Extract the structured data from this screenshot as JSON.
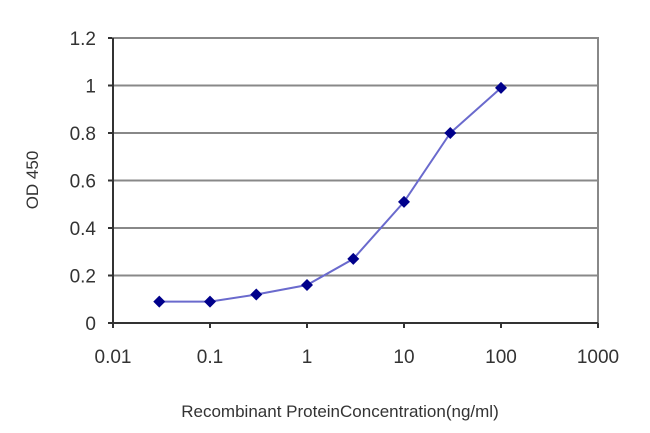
{
  "chart_data": {
    "type": "line",
    "title": "",
    "xlabel": "Recombinant ProteinConcentration(ng/ml)",
    "ylabel": "OD 450",
    "x_scale": "log",
    "xlim": [
      0.01,
      1000
    ],
    "ylim": [
      0,
      1.2
    ],
    "x_ticks": [
      "0.01",
      "0.1",
      "1",
      "10",
      "100",
      "1000"
    ],
    "y_ticks": [
      "0",
      "0.2",
      "0.4",
      "0.6",
      "0.8",
      "1",
      "1.2"
    ],
    "grid": {
      "horizontal": true,
      "vertical": false
    },
    "legend": null,
    "series": [
      {
        "name": "OD 450",
        "color": "#00008b",
        "line_color": "#6a6acd",
        "marker": "diamond",
        "x": [
          0.03,
          0.1,
          0.3,
          1,
          3,
          10,
          30,
          100
        ],
        "values": [
          0.09,
          0.09,
          0.12,
          0.16,
          0.27,
          0.51,
          0.8,
          0.99
        ]
      }
    ]
  }
}
